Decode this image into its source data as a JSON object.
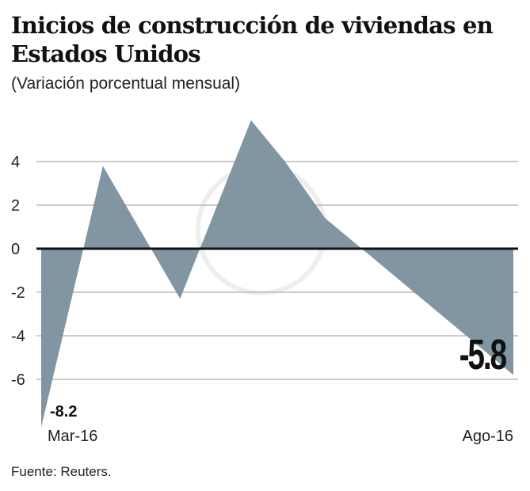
{
  "chart_data": {
    "type": "area",
    "title": "Inicios de construcción de viviendas en Estados Unidos",
    "subtitle": "(Variación porcentual mensual)",
    "source": "Fuente: Reuters.",
    "x_tick_labels": [
      "Mar-16",
      "Ago-16"
    ],
    "x": [
      "2016-03-01",
      "2016-03-21",
      "2016-04-15",
      "2016-05-08",
      "2016-05-19",
      "2016-06-01",
      "2016-08-01"
    ],
    "values": [
      -8.2,
      3.8,
      -2.3,
      5.9,
      4.0,
      1.4,
      -5.8
    ],
    "annotations": [
      {
        "label": "-8.2",
        "value": -8.2
      },
      {
        "label": "-5.8",
        "value": -5.8
      }
    ],
    "y_ticks": [
      4,
      2,
      0,
      -2,
      -4,
      -6
    ],
    "y_tick_labels": [
      "4",
      "2",
      "0",
      "-2",
      "-4",
      "-6"
    ],
    "ylim": [
      -8.2,
      6
    ],
    "grid": true,
    "colors": {
      "area": "#7d929f",
      "zero_line": "#111111",
      "grid": "#bbbbbb"
    }
  }
}
